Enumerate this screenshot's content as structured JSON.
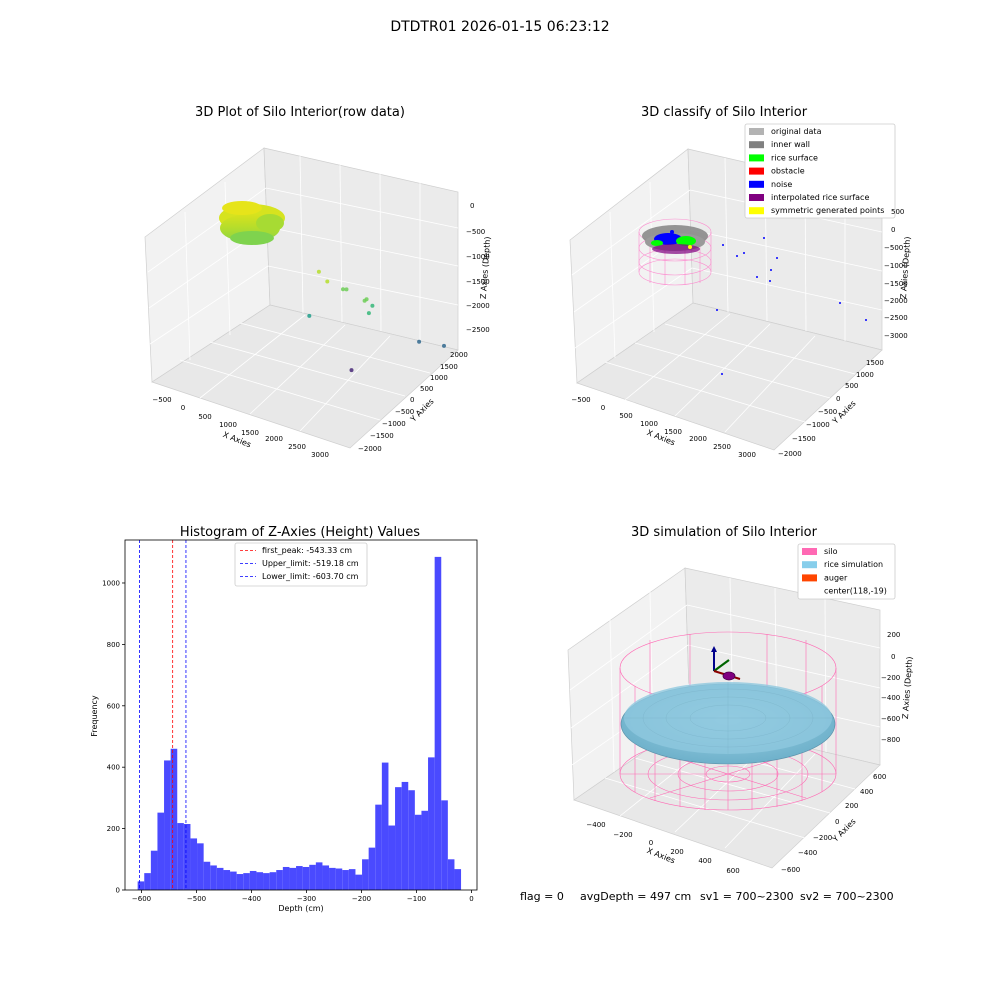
{
  "figure": {
    "suptitle": "DTDTR01 2026-01-15 06:23:12",
    "status_line": {
      "flag": "flag = 0",
      "avg_depth": "avgDepth = 497 cm",
      "sv1": "sv1 = 700~2300",
      "sv2": "sv2 = 700~2300"
    }
  },
  "colors": {
    "hist_bar": "#4a4aff",
    "first_peak_line": "#ff0000",
    "limit_line": "#0000ff",
    "original_data": "#b3b3b3",
    "inner_wall": "#808080",
    "rice_surface": "#00ff00",
    "obstacle": "#ff0000",
    "noise": "#0000ff",
    "interpolated_rice_surface": "#800080",
    "symmetric_generated_points": "#ffff00",
    "silo": "#ff69b4",
    "rice_simulation": "#87ceeb",
    "auger": "#ff4500"
  },
  "chart_data": [
    {
      "type": "scatter3d",
      "title": "3D Plot of Silo Interior(row data)",
      "xlabel": "X Axies",
      "ylabel": "Y Axies",
      "zlabel": "Z Axies (Depth)",
      "x_ticks": [
        "−500",
        "0",
        "500",
        "1000",
        "1500",
        "2000",
        "2500",
        "3000"
      ],
      "y_ticks": [
        "2000",
        "1500",
        "1000",
        "500",
        "0",
        "−500",
        "−1000",
        "−1500",
        "−2000"
      ],
      "z_ticks": [
        "0",
        "−500",
        "−1000",
        "−1500",
        "−2000",
        "−2500"
      ],
      "xlim": [
        -600,
        3200
      ],
      "ylim": [
        -2100,
        2100
      ],
      "zlim": [
        -2900,
        200
      ],
      "grid": true,
      "colormap": "viridis (by depth)",
      "points": [
        {
          "x": 2000,
          "y": 800,
          "z": -250
        },
        {
          "x": 2100,
          "y": 700,
          "z": -450
        },
        {
          "x": 2400,
          "y": 700,
          "z": -500
        },
        {
          "x": 2300,
          "y": 400,
          "z": -650
        },
        {
          "x": 2700,
          "y": 500,
          "z": -700
        },
        {
          "x": 2600,
          "y": 250,
          "z": -800
        },
        {
          "x": 2650,
          "y": 150,
          "z": -950
        },
        {
          "x": 2550,
          "y": 100,
          "z": -1150
        },
        {
          "x": 1500,
          "y": 300,
          "z": -1500
        },
        {
          "x": 3000,
          "y": -800,
          "z": -1900
        },
        {
          "x": 3200,
          "y": -1300,
          "z": -2100
        },
        {
          "x": 2000,
          "y": -200,
          "z": -2600
        }
      ]
    },
    {
      "type": "scatter3d",
      "title": "3D classify of Silo Interior",
      "xlabel": "X Axies",
      "ylabel": "Y Axies",
      "zlabel": "Z Axies (Depth)",
      "x_ticks": [
        "−500",
        "0",
        "500",
        "1000",
        "1500",
        "2000",
        "2500",
        "3000"
      ],
      "y_ticks": [
        "1500",
        "1000",
        "500",
        "0",
        "−500",
        "−1000",
        "−1500",
        "−2000"
      ],
      "z_ticks": [
        "500",
        "0",
        "−500",
        "−1000",
        "−1500",
        "−2000",
        "−2500",
        "−3000"
      ],
      "xlim": [
        -600,
        3200
      ],
      "ylim": [
        -2100,
        1800
      ],
      "zlim": [
        -3000,
        500
      ],
      "grid": true,
      "legend_position": "top-right",
      "legend": [
        {
          "label": "original data",
          "color_key": "original_data"
        },
        {
          "label": "inner wall",
          "color_key": "inner_wall"
        },
        {
          "label": "rice surface",
          "color_key": "rice_surface"
        },
        {
          "label": "obstacle",
          "color_key": "obstacle"
        },
        {
          "label": "noise",
          "color_key": "noise"
        },
        {
          "label": "interpolated rice surface",
          "color_key": "interpolated_rice_surface"
        },
        {
          "label": "symmetric generated points",
          "color_key": "symmetric_generated_points"
        }
      ]
    },
    {
      "type": "bar",
      "title": "Histogram of Z-Axies (Height) Values",
      "xlabel": "Depth (cm)",
      "ylabel": "Frequency",
      "xlim": [
        -630,
        10
      ],
      "ylim": [
        0,
        1140
      ],
      "x_ticks": [
        -600,
        -500,
        -400,
        -300,
        -200,
        -100,
        0
      ],
      "x_tick_labels": [
        "−600",
        "−500",
        "−400",
        "−300",
        "−200",
        "−100",
        "0"
      ],
      "y_ticks": [
        0,
        200,
        400,
        600,
        800,
        1000
      ],
      "y_tick_labels": [
        "0",
        "200",
        "400",
        "600",
        "800",
        "1000"
      ],
      "bin_start": -607,
      "bin_width": 12,
      "values": [
        28,
        55,
        128,
        252,
        422,
        460,
        218,
        215,
        168,
        152,
        92,
        80,
        72,
        65,
        60,
        52,
        55,
        62,
        58,
        55,
        58,
        65,
        75,
        72,
        78,
        75,
        82,
        90,
        80,
        72,
        70,
        65,
        68,
        50,
        100,
        138,
        278,
        415,
        210,
        335,
        352,
        325,
        245,
        258,
        432,
        1085,
        292,
        100,
        68
      ],
      "reference_lines": [
        {
          "label": "first_peak: -543.33 cm",
          "x": -543.33,
          "color_key": "first_peak_line"
        },
        {
          "label": "Upper_limit: -519.18 cm",
          "x": -519.18,
          "color_key": "limit_line"
        },
        {
          "label": "Lower_limit: -603.70 cm",
          "x": -603.7,
          "color_key": "limit_line"
        }
      ],
      "legend_position": "top-center"
    },
    {
      "type": "surface3d",
      "title": "3D simulation of Silo Interior",
      "xlabel": "X Axies",
      "ylabel": "Y Axies",
      "zlabel": "Z Axies (Depth)",
      "x_ticks": [
        "−400",
        "−200",
        "0",
        "200",
        "400",
        "600"
      ],
      "y_ticks": [
        "600",
        "400",
        "200",
        "0",
        "−200",
        "−400",
        "−600"
      ],
      "z_ticks": [
        "200",
        "0",
        "−200",
        "−400",
        "−600",
        "−800"
      ],
      "xlim": [
        -650,
        750
      ],
      "ylim": [
        -700,
        700
      ],
      "zlim": [
        -1000,
        300
      ],
      "grid": true,
      "legend_position": "top-right",
      "legend": [
        {
          "label": "silo",
          "color_key": "silo"
        },
        {
          "label": "rice simulation",
          "color_key": "rice_simulation"
        },
        {
          "label": "auger",
          "color_key": "auger"
        },
        {
          "label": "center(118,-19)",
          "color_key": ""
        }
      ]
    }
  ]
}
